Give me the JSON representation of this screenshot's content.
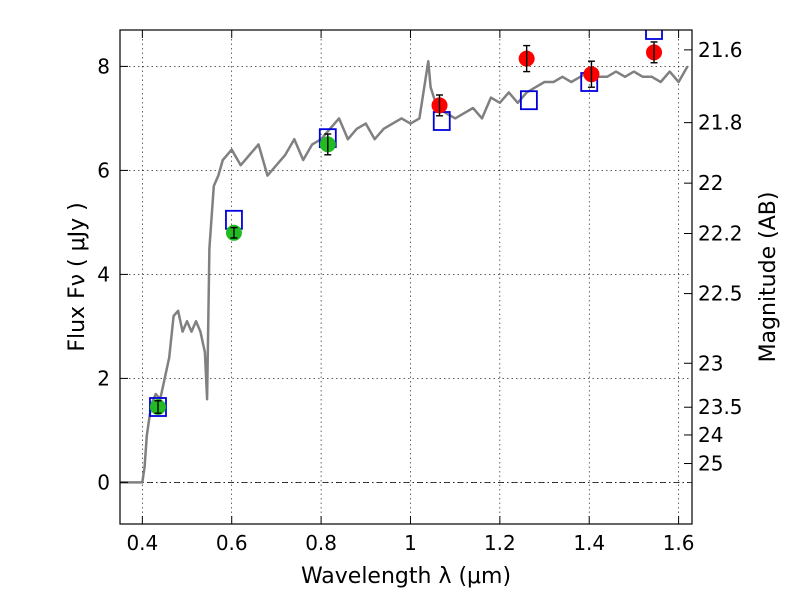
{
  "chart_data": {
    "type": "scatter",
    "xlabel": "Wavelength  λ (μm)",
    "ylabel": "Flux  Fν  ( μJy )",
    "ylabel_right": "Magnitude (AB)",
    "xlim": [
      0.35,
      1.63
    ],
    "ylim": [
      -0.8,
      8.7
    ],
    "grid": true,
    "x_ticks": [
      {
        "value": 0.4,
        "label": "0.4"
      },
      {
        "value": 0.6,
        "label": "0.6"
      },
      {
        "value": 0.8,
        "label": "0.8"
      },
      {
        "value": 1.0,
        "label": "1"
      },
      {
        "value": 1.2,
        "label": "1.2"
      },
      {
        "value": 1.4,
        "label": "1.4"
      },
      {
        "value": 1.6,
        "label": "1.6"
      }
    ],
    "y_ticks": [
      {
        "value": 0,
        "label": "0"
      },
      {
        "value": 2,
        "label": "2"
      },
      {
        "value": 4,
        "label": "4"
      },
      {
        "value": 6,
        "label": "6"
      },
      {
        "value": 8,
        "label": "8"
      }
    ],
    "mag_ticks": [
      {
        "value": 21.6,
        "label": "21.6"
      },
      {
        "value": 21.8,
        "label": "21.8"
      },
      {
        "value": 22,
        "label": "22"
      },
      {
        "value": 22.2,
        "label": "22.2"
      },
      {
        "value": 22.5,
        "label": "22.5"
      },
      {
        "value": 23,
        "label": "23"
      },
      {
        "value": 23.5,
        "label": "23.5"
      },
      {
        "value": 24,
        "label": "24"
      },
      {
        "value": 25,
        "label": "25"
      }
    ],
    "colors": {
      "model": "#808080",
      "optical": "#22bb22",
      "infrared": "#ff0000",
      "model_box": "#0000dd",
      "error_bar": "#000000"
    },
    "series": [
      {
        "marker": "line",
        "color": "#808080",
        "x": [
          0.35,
          0.4,
          0.405,
          0.41,
          0.42,
          0.43,
          0.44,
          0.45,
          0.46,
          0.47,
          0.48,
          0.49,
          0.5,
          0.51,
          0.52,
          0.53,
          0.54,
          0.545,
          0.55,
          0.56,
          0.57,
          0.58,
          0.59,
          0.6,
          0.62,
          0.64,
          0.66,
          0.68,
          0.7,
          0.72,
          0.74,
          0.76,
          0.78,
          0.8,
          0.82,
          0.84,
          0.86,
          0.88,
          0.9,
          0.92,
          0.94,
          0.96,
          0.98,
          1.0,
          1.02,
          1.04,
          1.045,
          1.06,
          1.08,
          1.1,
          1.12,
          1.14,
          1.16,
          1.18,
          1.2,
          1.22,
          1.24,
          1.26,
          1.28,
          1.3,
          1.32,
          1.34,
          1.36,
          1.38,
          1.4,
          1.42,
          1.44,
          1.46,
          1.48,
          1.5,
          1.52,
          1.54,
          1.56,
          1.58,
          1.6,
          1.62
        ],
        "y": [
          0.0,
          0.0,
          0.3,
          0.9,
          1.5,
          1.7,
          1.6,
          2.0,
          2.4,
          3.2,
          3.3,
          2.9,
          3.1,
          2.9,
          3.1,
          2.9,
          2.5,
          1.6,
          4.5,
          5.7,
          5.9,
          6.2,
          6.3,
          6.4,
          6.1,
          6.3,
          6.5,
          5.9,
          6.1,
          6.3,
          6.6,
          6.2,
          6.5,
          6.6,
          6.8,
          7.0,
          6.6,
          6.8,
          6.9,
          6.6,
          6.8,
          6.9,
          7.0,
          6.9,
          7.0,
          8.1,
          7.6,
          7.2,
          7.1,
          7.0,
          7.1,
          7.2,
          7.0,
          7.4,
          7.3,
          7.5,
          7.3,
          7.5,
          7.6,
          7.7,
          7.7,
          7.8,
          7.7,
          7.8,
          7.9,
          7.8,
          7.8,
          7.9,
          7.8,
          7.9,
          7.8,
          7.8,
          7.7,
          7.9,
          7.7,
          8.0
        ]
      },
      {
        "marker": "square",
        "color": "#0000dd",
        "x": [
          0.435,
          0.605,
          0.815,
          1.07,
          1.265,
          1.4,
          1.545
        ],
        "y": [
          1.45,
          5.05,
          6.62,
          6.95,
          7.35,
          7.7,
          8.7
        ]
      },
      {
        "marker": "circle",
        "color": "#22bb22",
        "x": [
          0.435,
          0.605,
          0.815
        ],
        "y": [
          1.45,
          4.8,
          6.5
        ],
        "err": [
          0.12,
          0.1,
          0.2
        ]
      },
      {
        "marker": "circle",
        "color": "#ff0000",
        "x": [
          1.065,
          1.26,
          1.405,
          1.545
        ],
        "y": [
          7.25,
          8.15,
          7.85,
          8.27
        ],
        "err": [
          0.2,
          0.25,
          0.25,
          0.2
        ]
      }
    ]
  }
}
